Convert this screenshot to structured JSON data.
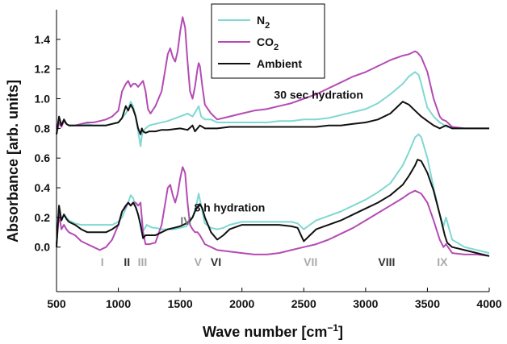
{
  "chart_data": {
    "type": "line",
    "xlabel_main": "Wave number [cm",
    "xlabel_sup": "−1",
    "xlabel_end": "]",
    "ylabel": "Absorbance [arb. units]",
    "xlim": [
      500,
      4000
    ],
    "ylim": [
      -0.3,
      1.6
    ],
    "grid": false,
    "legend_position": "top-center",
    "x_ticks": [
      "500",
      "1000",
      "1500",
      "2000",
      "2500",
      "3000",
      "3500",
      "4000"
    ],
    "y_ticks": [
      "0.0",
      "0.2",
      "0.4",
      "0.6",
      "0.8",
      "1.0",
      "1.2",
      "1.4"
    ],
    "annotations": [
      {
        "text": "30 sec hydration",
        "x": 2620,
        "y": 1.0
      },
      {
        "text": "8 h hydration",
        "x": 1900,
        "y": 0.24
      }
    ],
    "band_labels": [
      {
        "text": "I",
        "x": 870,
        "color": "#aaaaaa"
      },
      {
        "text": "II",
        "x": 1070,
        "color": "#333333"
      },
      {
        "text": "III",
        "x": 1195,
        "color": "#aaaaaa"
      },
      {
        "text": "IV",
        "x": 1545,
        "color": "#777777",
        "y": 0.15
      },
      {
        "text": "V",
        "x": 1645,
        "color": "#aaaaaa"
      },
      {
        "text": "VI",
        "x": 1790,
        "color": "#333333"
      },
      {
        "text": "VII",
        "x": 2555,
        "color": "#aaaaaa"
      },
      {
        "text": "VIII",
        "x": 3170,
        "color": "#333333"
      },
      {
        "text": "IX",
        "x": 3620,
        "color": "#aaaaaa"
      }
    ],
    "series": [
      {
        "name": "N",
        "sub": "2",
        "color": "#7fd8d2",
        "sets": [
          {
            "x": [
              500,
              520,
              540,
              560,
              580,
              600,
              650,
              700,
              750,
              800,
              850,
              900,
              950,
              1000,
              1030,
              1060,
              1080,
              1100,
              1120,
              1140,
              1160,
              1180,
              1190,
              1200,
              1220,
              1250,
              1300,
              1400,
              1500,
              1560,
              1600,
              1630,
              1650,
              1670,
              1700,
              1750,
              1800,
              1900,
              2000,
              2100,
              2200,
              2300,
              2400,
              2500,
              2600,
              2700,
              2800,
              2900,
              3000,
              3100,
              3200,
              3300,
              3350,
              3400,
              3430,
              3450,
              3480,
              3500,
              3550,
              3600,
              3620,
              3640,
              3660,
              3700,
              3800,
              3900,
              4000
            ],
            "y": [
              0.76,
              0.84,
              0.81,
              0.86,
              0.83,
              0.82,
              0.82,
              0.82,
              0.83,
              0.82,
              0.82,
              0.82,
              0.83,
              0.84,
              0.87,
              0.9,
              0.93,
              0.98,
              0.95,
              0.88,
              0.78,
              0.68,
              0.75,
              0.78,
              0.8,
              0.82,
              0.83,
              0.85,
              0.88,
              0.9,
              0.88,
              0.92,
              0.95,
              0.88,
              0.86,
              0.86,
              0.84,
              0.84,
              0.84,
              0.84,
              0.84,
              0.85,
              0.85,
              0.86,
              0.86,
              0.87,
              0.89,
              0.91,
              0.93,
              0.97,
              1.03,
              1.1,
              1.15,
              1.18,
              1.16,
              1.1,
              1.0,
              0.94,
              0.88,
              0.84,
              0.83,
              0.82,
              0.81,
              0.8,
              0.8,
              0.8,
              0.8
            ]
          },
          {
            "x": [
              500,
              520,
              540,
              560,
              580,
              600,
              650,
              700,
              750,
              800,
              850,
              900,
              950,
              1000,
              1030,
              1060,
              1080,
              1100,
              1120,
              1150,
              1170,
              1190,
              1210,
              1230,
              1250,
              1280,
              1300,
              1350,
              1400,
              1450,
              1500,
              1550,
              1580,
              1600,
              1620,
              1640,
              1650,
              1660,
              1680,
              1700,
              1750,
              1800,
              1850,
              1900,
              2000,
              2100,
              2200,
              2300,
              2400,
              2450,
              2500,
              2550,
              2600,
              2700,
              2800,
              2900,
              3000,
              3100,
              3200,
              3300,
              3350,
              3400,
              3430,
              3450,
              3500,
              3550,
              3600,
              3630,
              3650,
              3700,
              3800,
              3900,
              4000
            ],
            "y": [
              0.02,
              0.28,
              0.18,
              0.22,
              0.2,
              0.18,
              0.16,
              0.15,
              0.15,
              0.15,
              0.15,
              0.15,
              0.15,
              0.17,
              0.2,
              0.26,
              0.3,
              0.35,
              0.33,
              0.25,
              0.18,
              0.1,
              0.12,
              0.15,
              0.14,
              0.13,
              0.13,
              0.12,
              0.12,
              0.12,
              0.13,
              0.14,
              0.17,
              0.2,
              0.25,
              0.32,
              0.36,
              0.32,
              0.24,
              0.16,
              0.13,
              0.12,
              0.13,
              0.15,
              0.17,
              0.17,
              0.17,
              0.17,
              0.17,
              0.16,
              0.12,
              0.15,
              0.18,
              0.21,
              0.24,
              0.28,
              0.32,
              0.37,
              0.43,
              0.55,
              0.64,
              0.74,
              0.76,
              0.74,
              0.6,
              0.4,
              0.22,
              0.14,
              0.2,
              0.05,
              0.0,
              -0.02,
              -0.04
            ]
          }
        ]
      },
      {
        "name": "CO",
        "sub": "2",
        "color": "#b44bb4",
        "sets": [
          {
            "x": [
              500,
              520,
              540,
              560,
              580,
              600,
              650,
              700,
              750,
              800,
              850,
              900,
              950,
              1000,
              1030,
              1060,
              1080,
              1100,
              1120,
              1140,
              1160,
              1180,
              1200,
              1220,
              1240,
              1260,
              1300,
              1350,
              1380,
              1400,
              1420,
              1440,
              1460,
              1480,
              1500,
              1520,
              1540,
              1560,
              1580,
              1600,
              1620,
              1640,
              1650,
              1660,
              1680,
              1700,
              1750,
              1800,
              1850,
              1900,
              2000,
              2100,
              2200,
              2300,
              2400,
              2500,
              2600,
              2700,
              2800,
              2900,
              3000,
              3100,
              3200,
              3300,
              3350,
              3400,
              3420,
              3450,
              3500,
              3550,
              3600,
              3620,
              3650,
              3700,
              3800,
              3900,
              4000
            ],
            "y": [
              0.76,
              0.84,
              0.81,
              0.85,
              0.83,
              0.82,
              0.82,
              0.83,
              0.84,
              0.84,
              0.85,
              0.86,
              0.88,
              0.92,
              1.05,
              1.1,
              1.12,
              1.08,
              1.1,
              1.1,
              1.08,
              1.1,
              1.12,
              1.05,
              0.93,
              0.9,
              0.95,
              1.05,
              1.2,
              1.3,
              1.34,
              1.28,
              1.25,
              1.32,
              1.45,
              1.55,
              1.48,
              1.25,
              1.05,
              1.0,
              1.08,
              1.2,
              1.24,
              1.22,
              1.08,
              0.96,
              0.9,
              0.86,
              0.87,
              0.88,
              0.9,
              0.92,
              0.93,
              0.95,
              0.97,
              1.0,
              1.03,
              1.07,
              1.11,
              1.15,
              1.18,
              1.22,
              1.26,
              1.29,
              1.3,
              1.32,
              1.31,
              1.28,
              1.18,
              1.0,
              0.88,
              0.86,
              0.85,
              0.81,
              0.8,
              0.8,
              0.8
            ]
          },
          {
            "x": [
              500,
              520,
              540,
              560,
              580,
              600,
              650,
              700,
              750,
              800,
              850,
              900,
              950,
              1000,
              1030,
              1060,
              1080,
              1100,
              1120,
              1140,
              1160,
              1180,
              1200,
              1220,
              1250,
              1300,
              1350,
              1380,
              1400,
              1420,
              1440,
              1460,
              1480,
              1500,
              1520,
              1540,
              1560,
              1580,
              1600,
              1620,
              1640,
              1660,
              1680,
              1700,
              1750,
              1800,
              1900,
              2000,
              2100,
              2200,
              2300,
              2400,
              2500,
              2600,
              2700,
              2800,
              2900,
              3000,
              3100,
              3200,
              3300,
              3350,
              3400,
              3450,
              3500,
              3550,
              3600,
              3630,
              3650,
              3700,
              3800,
              3900,
              4000
            ],
            "y": [
              0.02,
              0.22,
              0.12,
              0.15,
              0.12,
              0.1,
              0.08,
              0.04,
              0.02,
              0.0,
              -0.02,
              0.0,
              0.05,
              0.15,
              0.24,
              0.27,
              0.3,
              0.28,
              0.3,
              0.3,
              0.28,
              0.3,
              0.1,
              0.02,
              0.02,
              0.03,
              0.15,
              0.3,
              0.4,
              0.42,
              0.35,
              0.3,
              0.36,
              0.46,
              0.54,
              0.5,
              0.3,
              0.15,
              0.12,
              0.1,
              0.1,
              0.08,
              0.05,
              0.02,
              0.0,
              -0.02,
              -0.03,
              -0.04,
              -0.05,
              -0.05,
              -0.04,
              -0.02,
              0.0,
              0.02,
              0.05,
              0.09,
              0.13,
              0.18,
              0.23,
              0.28,
              0.33,
              0.36,
              0.38,
              0.36,
              0.3,
              0.18,
              0.05,
              0.0,
              0.02,
              -0.04,
              -0.05,
              -0.05,
              -0.06
            ]
          }
        ]
      },
      {
        "name": "Ambient",
        "sub": "",
        "color": "#111111",
        "sets": [
          {
            "x": [
              500,
              520,
              540,
              560,
              580,
              600,
              650,
              700,
              750,
              800,
              850,
              900,
              950,
              1000,
              1030,
              1060,
              1080,
              1100,
              1120,
              1140,
              1160,
              1180,
              1190,
              1200,
              1220,
              1250,
              1300,
              1350,
              1400,
              1500,
              1560,
              1600,
              1620,
              1640,
              1660,
              1700,
              1750,
              1800,
              1900,
              2000,
              2100,
              2200,
              2300,
              2400,
              2500,
              2600,
              2700,
              2800,
              2900,
              3000,
              3100,
              3200,
              3250,
              3300,
              3350,
              3400,
              3450,
              3500,
              3550,
              3600,
              3650,
              3700,
              3800,
              3900,
              4000
            ],
            "y": [
              0.76,
              0.88,
              0.82,
              0.86,
              0.83,
              0.82,
              0.82,
              0.82,
              0.82,
              0.82,
              0.82,
              0.82,
              0.83,
              0.84,
              0.87,
              0.95,
              0.92,
              0.96,
              0.93,
              0.88,
              0.8,
              0.76,
              0.8,
              0.78,
              0.77,
              0.78,
              0.78,
              0.79,
              0.79,
              0.8,
              0.79,
              0.82,
              0.78,
              0.8,
              0.82,
              0.8,
              0.8,
              0.8,
              0.81,
              0.81,
              0.81,
              0.81,
              0.81,
              0.81,
              0.81,
              0.81,
              0.82,
              0.82,
              0.83,
              0.84,
              0.86,
              0.9,
              0.94,
              0.98,
              0.96,
              0.92,
              0.88,
              0.85,
              0.82,
              0.8,
              0.82,
              0.8,
              0.8,
              0.8,
              0.8
            ]
          },
          {
            "x": [
              500,
              520,
              540,
              560,
              580,
              600,
              650,
              700,
              750,
              800,
              850,
              900,
              950,
              1000,
              1030,
              1060,
              1080,
              1100,
              1120,
              1140,
              1160,
              1180,
              1200,
              1220,
              1250,
              1300,
              1350,
              1400,
              1450,
              1500,
              1550,
              1580,
              1600,
              1620,
              1640,
              1660,
              1680,
              1700,
              1750,
              1800,
              1850,
              1900,
              2000,
              2100,
              2200,
              2300,
              2400,
              2450,
              2500,
              2550,
              2600,
              2700,
              2800,
              2900,
              3000,
              3100,
              3200,
              3300,
              3350,
              3400,
              3420,
              3450,
              3500,
              3550,
              3600,
              3640,
              3660,
              3700,
              3800,
              3900,
              4000
            ],
            "y": [
              0.0,
              0.28,
              0.18,
              0.22,
              0.19,
              0.17,
              0.15,
              0.12,
              0.1,
              0.1,
              0.1,
              0.1,
              0.12,
              0.15,
              0.24,
              0.28,
              0.3,
              0.28,
              0.3,
              0.27,
              0.22,
              0.15,
              0.06,
              0.08,
              0.08,
              0.08,
              0.1,
              0.12,
              0.13,
              0.14,
              0.16,
              0.18,
              0.2,
              0.24,
              0.27,
              0.29,
              0.26,
              0.2,
              0.1,
              0.05,
              0.08,
              0.12,
              0.15,
              0.15,
              0.15,
              0.15,
              0.14,
              0.13,
              0.04,
              0.08,
              0.12,
              0.15,
              0.18,
              0.22,
              0.26,
              0.3,
              0.35,
              0.42,
              0.48,
              0.55,
              0.59,
              0.58,
              0.5,
              0.38,
              0.22,
              0.08,
              0.03,
              0.0,
              -0.02,
              -0.04,
              -0.06
            ]
          }
        ]
      }
    ]
  }
}
